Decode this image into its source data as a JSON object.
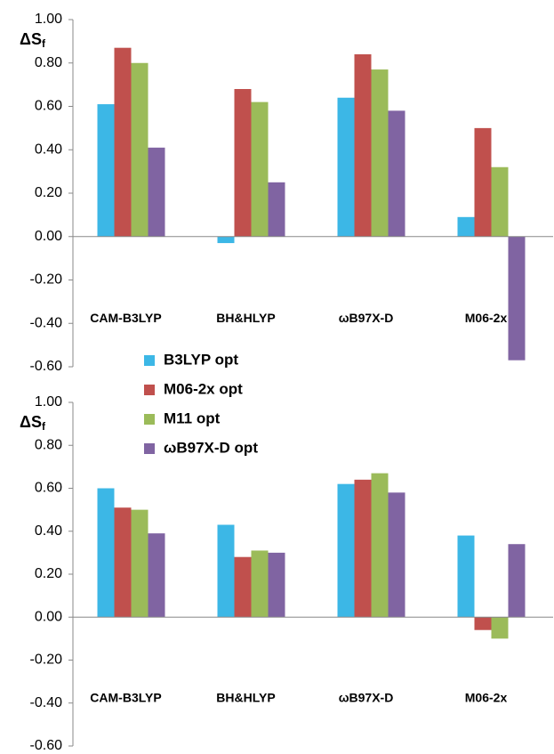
{
  "chart_data": [
    {
      "type": "bar",
      "ylabel": "ΔS",
      "ylabel_sub": "f",
      "categories": [
        "CAM-B3LYP",
        "BH&HLYP",
        "ωB97X-D",
        "M06-2x"
      ],
      "series": [
        {
          "name": "B3LYP opt",
          "color": "#3cb7e6",
          "values": [
            0.61,
            -0.03,
            0.64,
            0.09
          ]
        },
        {
          "name": "M06-2x opt",
          "color": "#c0504d",
          "values": [
            0.87,
            0.68,
            0.84,
            0.5
          ]
        },
        {
          "name": "M11 opt",
          "color": "#9bbb59",
          "values": [
            0.8,
            0.62,
            0.77,
            0.32
          ]
        },
        {
          "name": "ωB97X-D opt",
          "color": "#8064a2",
          "values": [
            0.41,
            0.25,
            0.58,
            -0.57
          ]
        }
      ],
      "ylim": [
        -0.6,
        1.0
      ],
      "yticks": [
        {
          "value": -0.6,
          "label": "-0.60"
        },
        {
          "value": -0.4,
          "label": "-0.40"
        },
        {
          "value": -0.2,
          "label": "-0.20"
        },
        {
          "value": 0,
          "label": "0.00"
        },
        {
          "value": 0.2,
          "label": "0.20"
        },
        {
          "value": 0.4,
          "label": "0.40"
        },
        {
          "value": 0.6,
          "label": "0.60"
        },
        {
          "value": 0.8,
          "label": "0.80"
        },
        {
          "value": 1.0,
          "label": "1.00"
        }
      ]
    },
    {
      "type": "bar",
      "ylabel": "ΔS",
      "ylabel_sub": "f",
      "categories": [
        "CAM-B3LYP",
        "BH&HLYP",
        "ωB97X-D",
        "M06-2x"
      ],
      "series": [
        {
          "color": "#3cb7e6",
          "values": [
            0.6,
            0.43,
            0.62,
            0.38
          ]
        },
        {
          "color": "#c0504d",
          "values": [
            0.51,
            0.28,
            0.64,
            -0.06
          ]
        },
        {
          "color": "#9bbb59",
          "values": [
            0.5,
            0.31,
            0.67,
            -0.1
          ]
        },
        {
          "color": "#8064a2",
          "values": [
            0.39,
            0.3,
            0.58,
            0.34
          ]
        }
      ],
      "ylim": [
        -0.6,
        1.0
      ],
      "yticks": [
        {
          "value": -0.6,
          "label": "-0.60"
        },
        {
          "value": -0.4,
          "label": "-0.40"
        },
        {
          "value": -0.2,
          "label": "-0.20"
        },
        {
          "value": 0,
          "label": "0.00"
        },
        {
          "value": 0.2,
          "label": "0.20"
        },
        {
          "value": 0.4,
          "label": "0.40"
        },
        {
          "value": 0.6,
          "label": "0.60"
        },
        {
          "value": 0.8,
          "label": "0.80"
        },
        {
          "value": 1.0,
          "label": "1.00"
        }
      ]
    }
  ]
}
